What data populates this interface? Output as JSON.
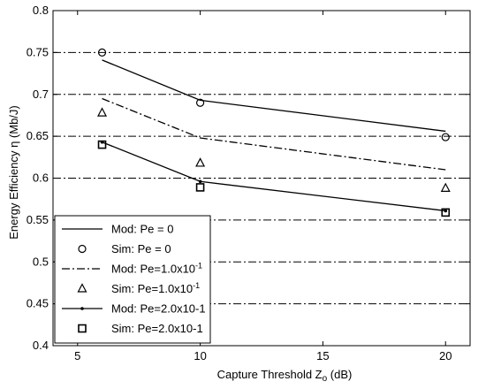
{
  "chart_data": {
    "type": "line",
    "xlabel_main": "Capture Threshold Z",
    "xlabel_sub": "o",
    "xlabel_unit": " (dB)",
    "ylabel": "Energy Efficiency η (Mb/J)",
    "xlim": [
      4,
      21
    ],
    "ylim": [
      0.4,
      0.8
    ],
    "xticks": [
      5,
      10,
      15,
      20
    ],
    "xtick_labels": [
      "5",
      "10",
      "15",
      "20"
    ],
    "yticks": [
      0.4,
      0.45,
      0.5,
      0.55,
      0.6,
      0.65,
      0.7,
      0.75,
      0.8
    ],
    "ytick_labels": [
      "0.4",
      "0.45",
      "0.5",
      "0.55",
      "0.6",
      "0.65",
      "0.7",
      "0.75",
      "0.8"
    ],
    "grid": "horizontal dash-dot",
    "legend_position": "bottom-left",
    "series": [
      {
        "name": "Mod: Pe = 0",
        "style": "line-solid",
        "x": [
          6,
          10,
          20
        ],
        "y": [
          0.741,
          0.693,
          0.656
        ]
      },
      {
        "name": "Sim: Pe = 0",
        "style": "marker-circle",
        "x": [
          6,
          10,
          20
        ],
        "y": [
          0.75,
          0.69,
          0.649
        ]
      },
      {
        "name": "Mod: Pe=1.0x10",
        "name_sup": "-1",
        "style": "line-dashdot",
        "x": [
          6,
          10,
          20
        ],
        "y": [
          0.695,
          0.648,
          0.61
        ]
      },
      {
        "name": "Sim: Pe=1.0x10",
        "name_sup": "-1",
        "style": "marker-triangle",
        "x": [
          6,
          10,
          20
        ],
        "y": [
          0.678,
          0.618,
          0.588
        ]
      },
      {
        "name": "Mod: Pe=2.0x10-1",
        "style": "line-solid-point",
        "x": [
          6,
          10,
          20
        ],
        "y": [
          0.643,
          0.596,
          0.561
        ]
      },
      {
        "name": "Sim: Pe=2.0x10-1",
        "style": "marker-square",
        "x": [
          6,
          10,
          20
        ],
        "y": [
          0.64,
          0.589,
          0.559
        ]
      }
    ]
  }
}
